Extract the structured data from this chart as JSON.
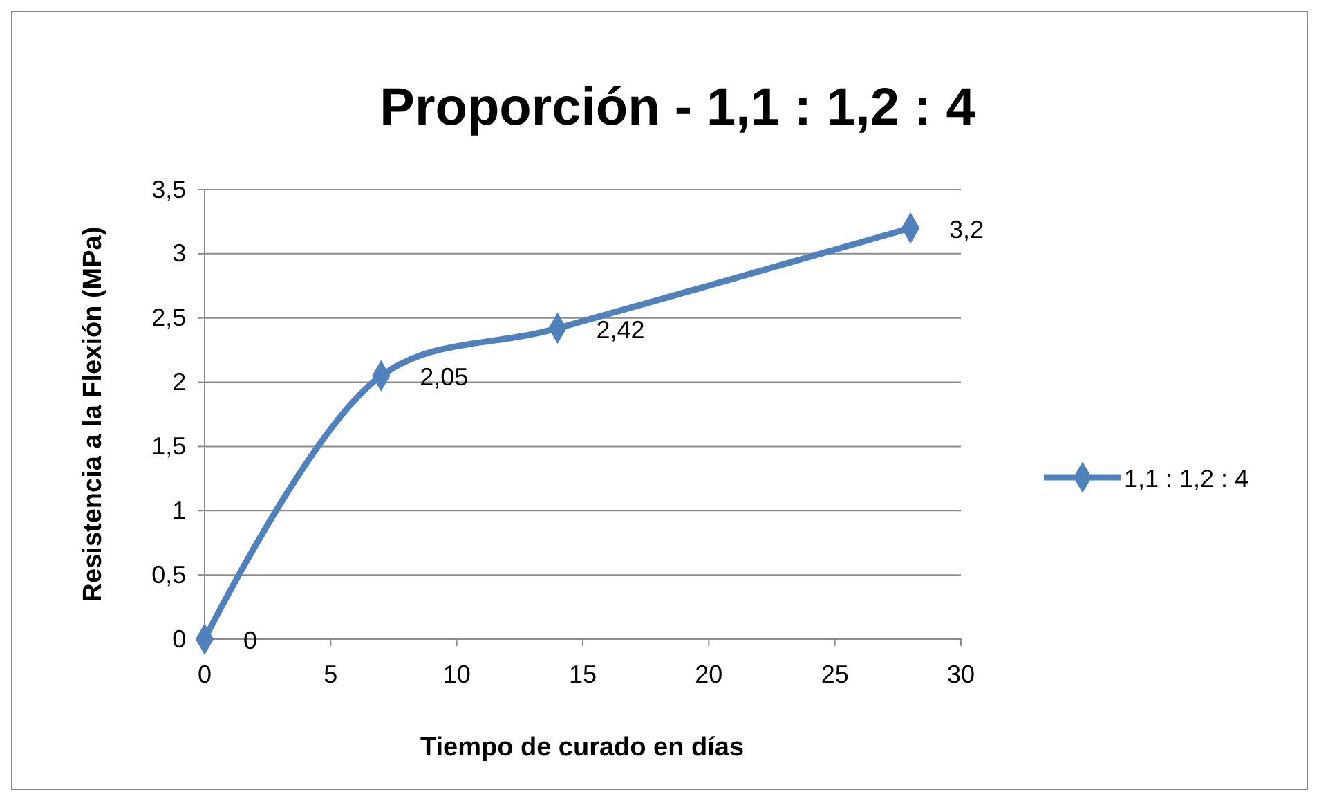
{
  "chart_data": {
    "type": "line",
    "title": "Proporción - 1,1 : 1,2 : 4",
    "xlabel": "Tiempo de curado en días",
    "ylabel": "Resistencia a la Flexión (MPa)",
    "x": [
      0,
      7,
      14,
      28
    ],
    "series": [
      {
        "name": "1,1 : 1,2 : 4",
        "color": "#4f81bd",
        "values": [
          0,
          2.05,
          2.42,
          3.2
        ],
        "value_labels": [
          "0",
          "2,05",
          "2,42",
          "3,2"
        ]
      }
    ],
    "xlim": [
      0,
      30
    ],
    "xticks": [
      0,
      5,
      10,
      15,
      20,
      25,
      30
    ],
    "ylim": [
      0,
      3.5
    ],
    "yticks": [
      0,
      {
        "value": 0.5,
        "label": "0,5"
      },
      1,
      {
        "value": 1.5,
        "label": "1,5"
      },
      2,
      {
        "value": 2.5,
        "label": "2,5"
      },
      3,
      {
        "value": 3.5,
        "label": "3,5"
      }
    ],
    "grid": "y",
    "legend": "right",
    "marker": "diamond",
    "line_style": "solid"
  }
}
